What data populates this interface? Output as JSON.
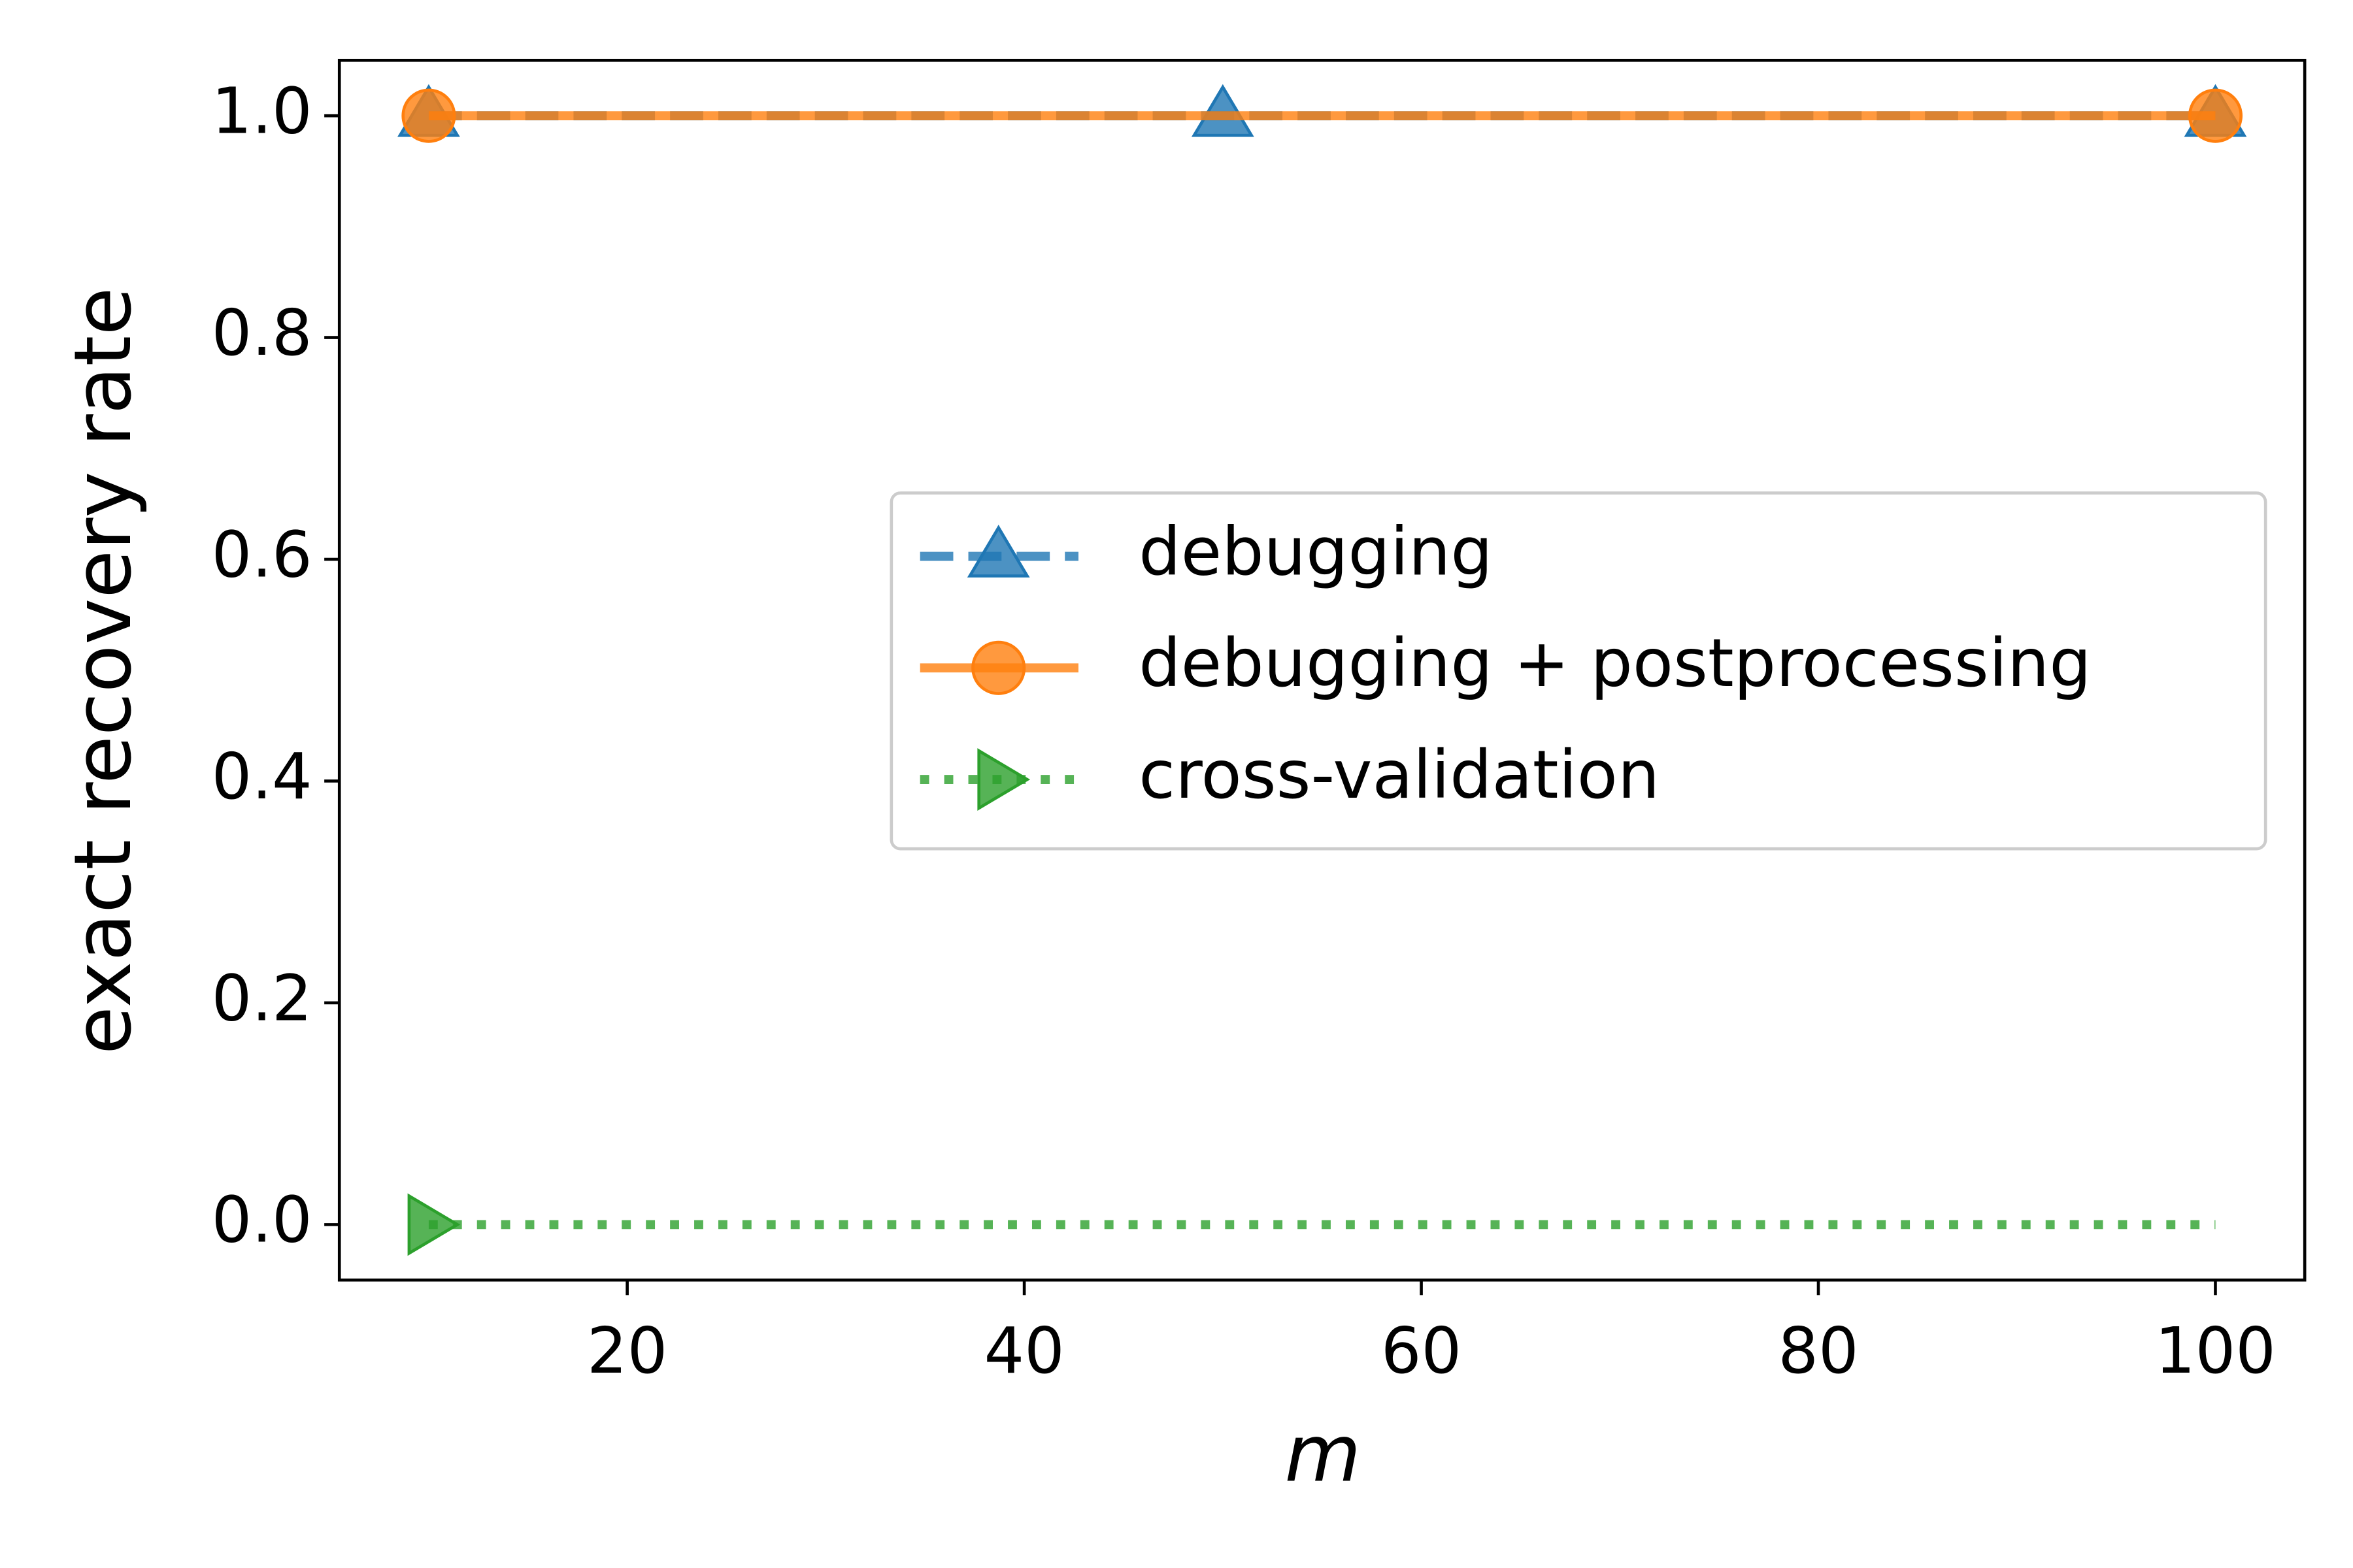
{
  "chart_data": {
    "type": "line",
    "xlabel": "m",
    "ylabel": "exact recovery rate",
    "xlim": [
      5.5,
      104.5
    ],
    "ylim": [
      -0.05,
      1.05
    ],
    "xticks": [
      20,
      40,
      60,
      80,
      100
    ],
    "yticks": [
      {
        "value": 0,
        "label": "0.0"
      },
      {
        "value": 0.2,
        "label": "0.2"
      },
      {
        "value": 0.4,
        "label": "0.4"
      },
      {
        "value": 0.6,
        "label": "0.6"
      },
      {
        "value": 0.8,
        "label": "0.8"
      },
      {
        "value": 1,
        "label": "1.0"
      }
    ],
    "legend": "center right",
    "series": [
      {
        "name": "debugging",
        "color": "#1f77b4",
        "dash": "dashed",
        "marker": "triangle-up",
        "x": [
          10,
          50,
          100
        ],
        "values": [
          1,
          1,
          1
        ],
        "markevery": [
          0,
          1,
          2
        ]
      },
      {
        "name": "debugging + postprocessing",
        "color": "#ff7f0e",
        "dash": "solid",
        "marker": "circle",
        "x": [
          10,
          50,
          100
        ],
        "values": [
          1,
          1,
          1
        ],
        "markevery": [
          0,
          2
        ]
      },
      {
        "name": "cross-validation",
        "color": "#2ca02c",
        "dash": "dotted",
        "marker": "triangle-right",
        "x": [
          10,
          50,
          100
        ],
        "values": [
          0,
          0,
          0
        ],
        "markevery": [
          0
        ]
      }
    ]
  }
}
